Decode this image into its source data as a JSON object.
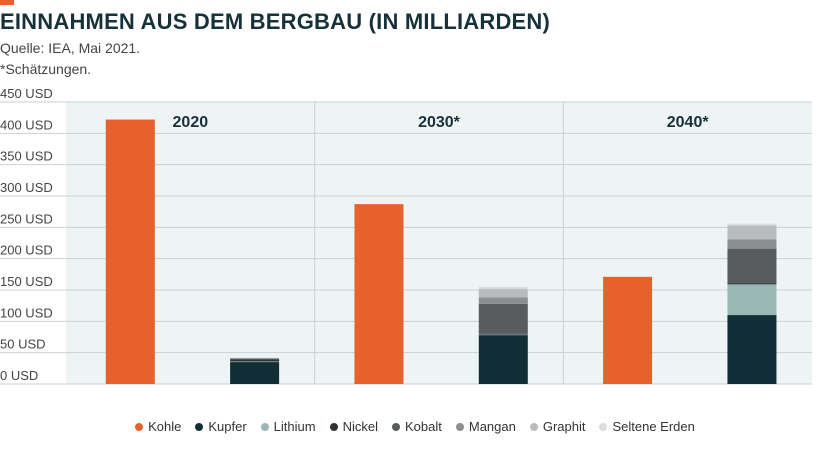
{
  "header": {
    "title": "EINNAHMEN AUS DEM BERGBAU (IN MILLIARDEN)",
    "source": "Quelle: IEA, Mai 2021.",
    "note": "*Schätzungen."
  },
  "colors": {
    "accent": "#e8602c",
    "panel_bg": "#eef4f4",
    "Kohle": "#e8602c",
    "Kupfer": "#112d36",
    "Lithium": "#9ab7b6",
    "Nickel": "#2f3436",
    "Kobalt": "#595c5e",
    "Mangan": "#8c8e90",
    "Graphit": "#b9bbbc",
    "Seltene Erden": "#dcdddd"
  },
  "chart_data": {
    "type": "bar",
    "y_tick_labels": [
      "0 USD",
      "50 USD",
      "100 USD",
      "150 USD",
      "200 USD",
      "250 USD",
      "300 USD",
      "350 USD",
      "400 USD",
      "450 USD"
    ],
    "y_ticks": [
      0,
      50,
      100,
      150,
      200,
      250,
      300,
      350,
      400,
      450
    ],
    "ylim": [
      0,
      450
    ],
    "grid": true,
    "legend_position": "bottom",
    "panels": [
      {
        "label": "2020",
        "kohle": 422,
        "stack": [
          {
            "name": "Kupfer",
            "value": 35
          },
          {
            "name": "Lithium",
            "value": 1
          },
          {
            "name": "Nickel",
            "value": 3
          },
          {
            "name": "Kobalt",
            "value": 2
          },
          {
            "name": "Mangan",
            "value": 0
          },
          {
            "name": "Graphit",
            "value": 0
          },
          {
            "name": "Seltene Erden",
            "value": 1
          }
        ]
      },
      {
        "label": "2030*",
        "kohle": 287,
        "stack": [
          {
            "name": "Kupfer",
            "value": 78
          },
          {
            "name": "Lithium",
            "value": 1
          },
          {
            "name": "Nickel",
            "value": 1
          },
          {
            "name": "Kobalt",
            "value": 48
          },
          {
            "name": "Mangan",
            "value": 10
          },
          {
            "name": "Graphit",
            "value": 14
          },
          {
            "name": "Seltene Erden",
            "value": 3
          }
        ]
      },
      {
        "label": "2040*",
        "kohle": 171,
        "stack": [
          {
            "name": "Kupfer",
            "value": 110
          },
          {
            "name": "Lithium",
            "value": 49
          },
          {
            "name": "Nickel",
            "value": 2
          },
          {
            "name": "Kobalt",
            "value": 55
          },
          {
            "name": "Mangan",
            "value": 15
          },
          {
            "name": "Graphit",
            "value": 22
          },
          {
            "name": "Seltene Erden",
            "value": 3
          }
        ]
      }
    ],
    "legend": [
      "Kohle",
      "Kupfer",
      "Lithium",
      "Nickel",
      "Kobalt",
      "Mangan",
      "Graphit",
      "Seltene Erden"
    ]
  }
}
